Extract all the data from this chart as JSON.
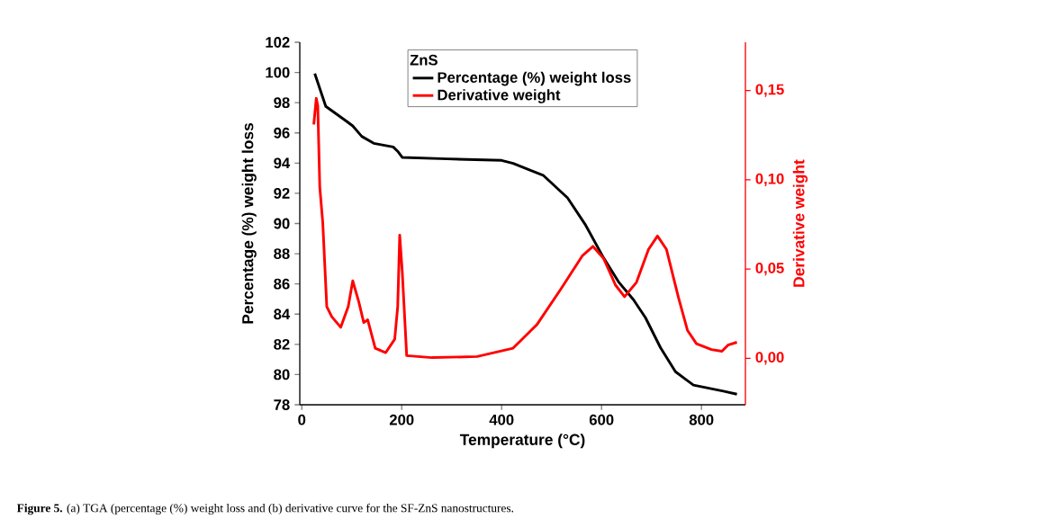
{
  "chart_data": {
    "type": "line",
    "xlabel": "Temperature (°C)",
    "ylabel": "Percentage (%) weight loss",
    "y2label": "Derivative weight",
    "legend_title": "ZnS",
    "legend": "top",
    "xlim": [
      -4,
      888
    ],
    "ylim": [
      78,
      102
    ],
    "y2lim": [
      -0.026,
      0.177
    ],
    "xticks": [
      0,
      200,
      400,
      600,
      800
    ],
    "yticks": [
      78,
      80,
      82,
      84,
      86,
      88,
      90,
      92,
      94,
      96,
      98,
      100,
      102
    ],
    "y2ticks": [
      {
        "value": 0,
        "label": "0,00"
      },
      {
        "value": 0.05,
        "label": "0,05"
      },
      {
        "value": 0.1,
        "label": "0,10"
      },
      {
        "value": 0.15,
        "label": "0,15"
      }
    ],
    "series": [
      {
        "name": "Percentage (%) weight loss",
        "color": "#000000",
        "x": [
          26,
          48,
          90,
          102,
          120,
          144,
          183,
          192,
          201,
          291,
          400,
          423,
          459,
          483,
          532,
          568,
          604,
          634,
          664,
          688,
          718,
          748,
          784,
          844,
          871
        ],
        "values": [
          99.93,
          97.76,
          96.76,
          96.46,
          95.77,
          95.31,
          95.07,
          94.78,
          94.38,
          94.28,
          94.18,
          93.98,
          93.5,
          93.2,
          91.7,
          89.9,
          87.73,
          86.14,
          84.95,
          83.76,
          81.78,
          80.19,
          79.3,
          78.9,
          78.7
        ]
      },
      {
        "name": "Derivative weight",
        "color": "#ff0000",
        "axis": "y2",
        "x": [
          24,
          29,
          32,
          36,
          42,
          50,
          60,
          78,
          93,
          102,
          114,
          124,
          132,
          147,
          168,
          186,
          192,
          196,
          201,
          210,
          261,
          351,
          423,
          459,
          471,
          519,
          562,
          583,
          604,
          628,
          646,
          670,
          694,
          712,
          730,
          754,
          772,
          790,
          820,
          841,
          853,
          871
        ],
        "values": [
          0.131,
          0.1456,
          0.1414,
          0.096,
          0.076,
          0.029,
          0.0233,
          0.0174,
          0.029,
          0.0434,
          0.0317,
          0.02,
          0.0216,
          0.0057,
          0.0032,
          0.0107,
          0.029,
          0.069,
          0.049,
          0.0015,
          0.0004,
          0.001,
          0.0057,
          0.0157,
          0.019,
          0.039,
          0.0576,
          0.0627,
          0.056,
          0.041,
          0.0345,
          0.0426,
          0.061,
          0.0685,
          0.061,
          0.034,
          0.0157,
          0.0082,
          0.0049,
          0.004,
          0.0074,
          0.009
        ]
      }
    ],
    "annotations": [
      "**Figure 5.** (a) TGA (percentage (%) weight loss and (b) derivative curve for the SF-ZnS nanostructures."
    ]
  }
}
